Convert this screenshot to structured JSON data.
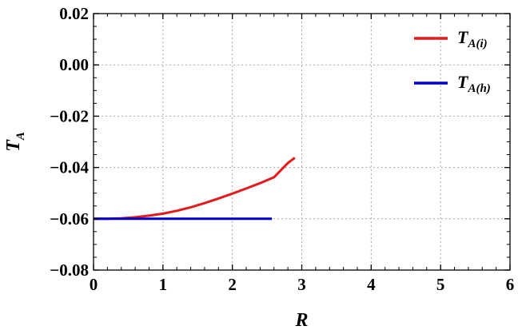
{
  "chart_data": {
    "type": "line",
    "xlabel": "R",
    "ylabel": {
      "main": "T",
      "sub": "A"
    },
    "xlim": [
      0,
      6
    ],
    "ylim": [
      -0.08,
      0.02
    ],
    "x_ticks": [
      0,
      1,
      2,
      3,
      4,
      5,
      6
    ],
    "x_tick_labels": [
      "0",
      "1",
      "2",
      "3",
      "4",
      "5",
      "6"
    ],
    "y_ticks": [
      0.02,
      0.0,
      -0.02,
      -0.04,
      -0.06,
      -0.08
    ],
    "y_tick_labels": [
      "0.02",
      "0.00",
      "−0.02",
      "−0.04",
      "−0.06",
      "−0.08"
    ],
    "grid": true,
    "grid_style": "dotted",
    "legend_position": "top-right",
    "series": [
      {
        "name": "T_A(i)",
        "label_main": "T",
        "label_sub": "A(i)",
        "color": "#e41a1c",
        "x": [
          0,
          0.2,
          0.4,
          0.6,
          0.8,
          1.0,
          1.2,
          1.4,
          1.6,
          1.8,
          2.0,
          2.2,
          2.4,
          2.6,
          2.8,
          2.9
        ],
        "y": [
          -0.06,
          -0.06,
          -0.0598,
          -0.0594,
          -0.0588,
          -0.058,
          -0.0569,
          -0.0555,
          -0.0539,
          -0.0521,
          -0.0502,
          -0.0482,
          -0.0461,
          -0.0438,
          -0.0383,
          -0.0362
        ]
      },
      {
        "name": "T_A(h)",
        "label_main": "T",
        "label_sub": "A(h)",
        "color": "#0000cc",
        "x": [
          0,
          2.57
        ],
        "y": [
          -0.06,
          -0.06
        ]
      }
    ]
  }
}
